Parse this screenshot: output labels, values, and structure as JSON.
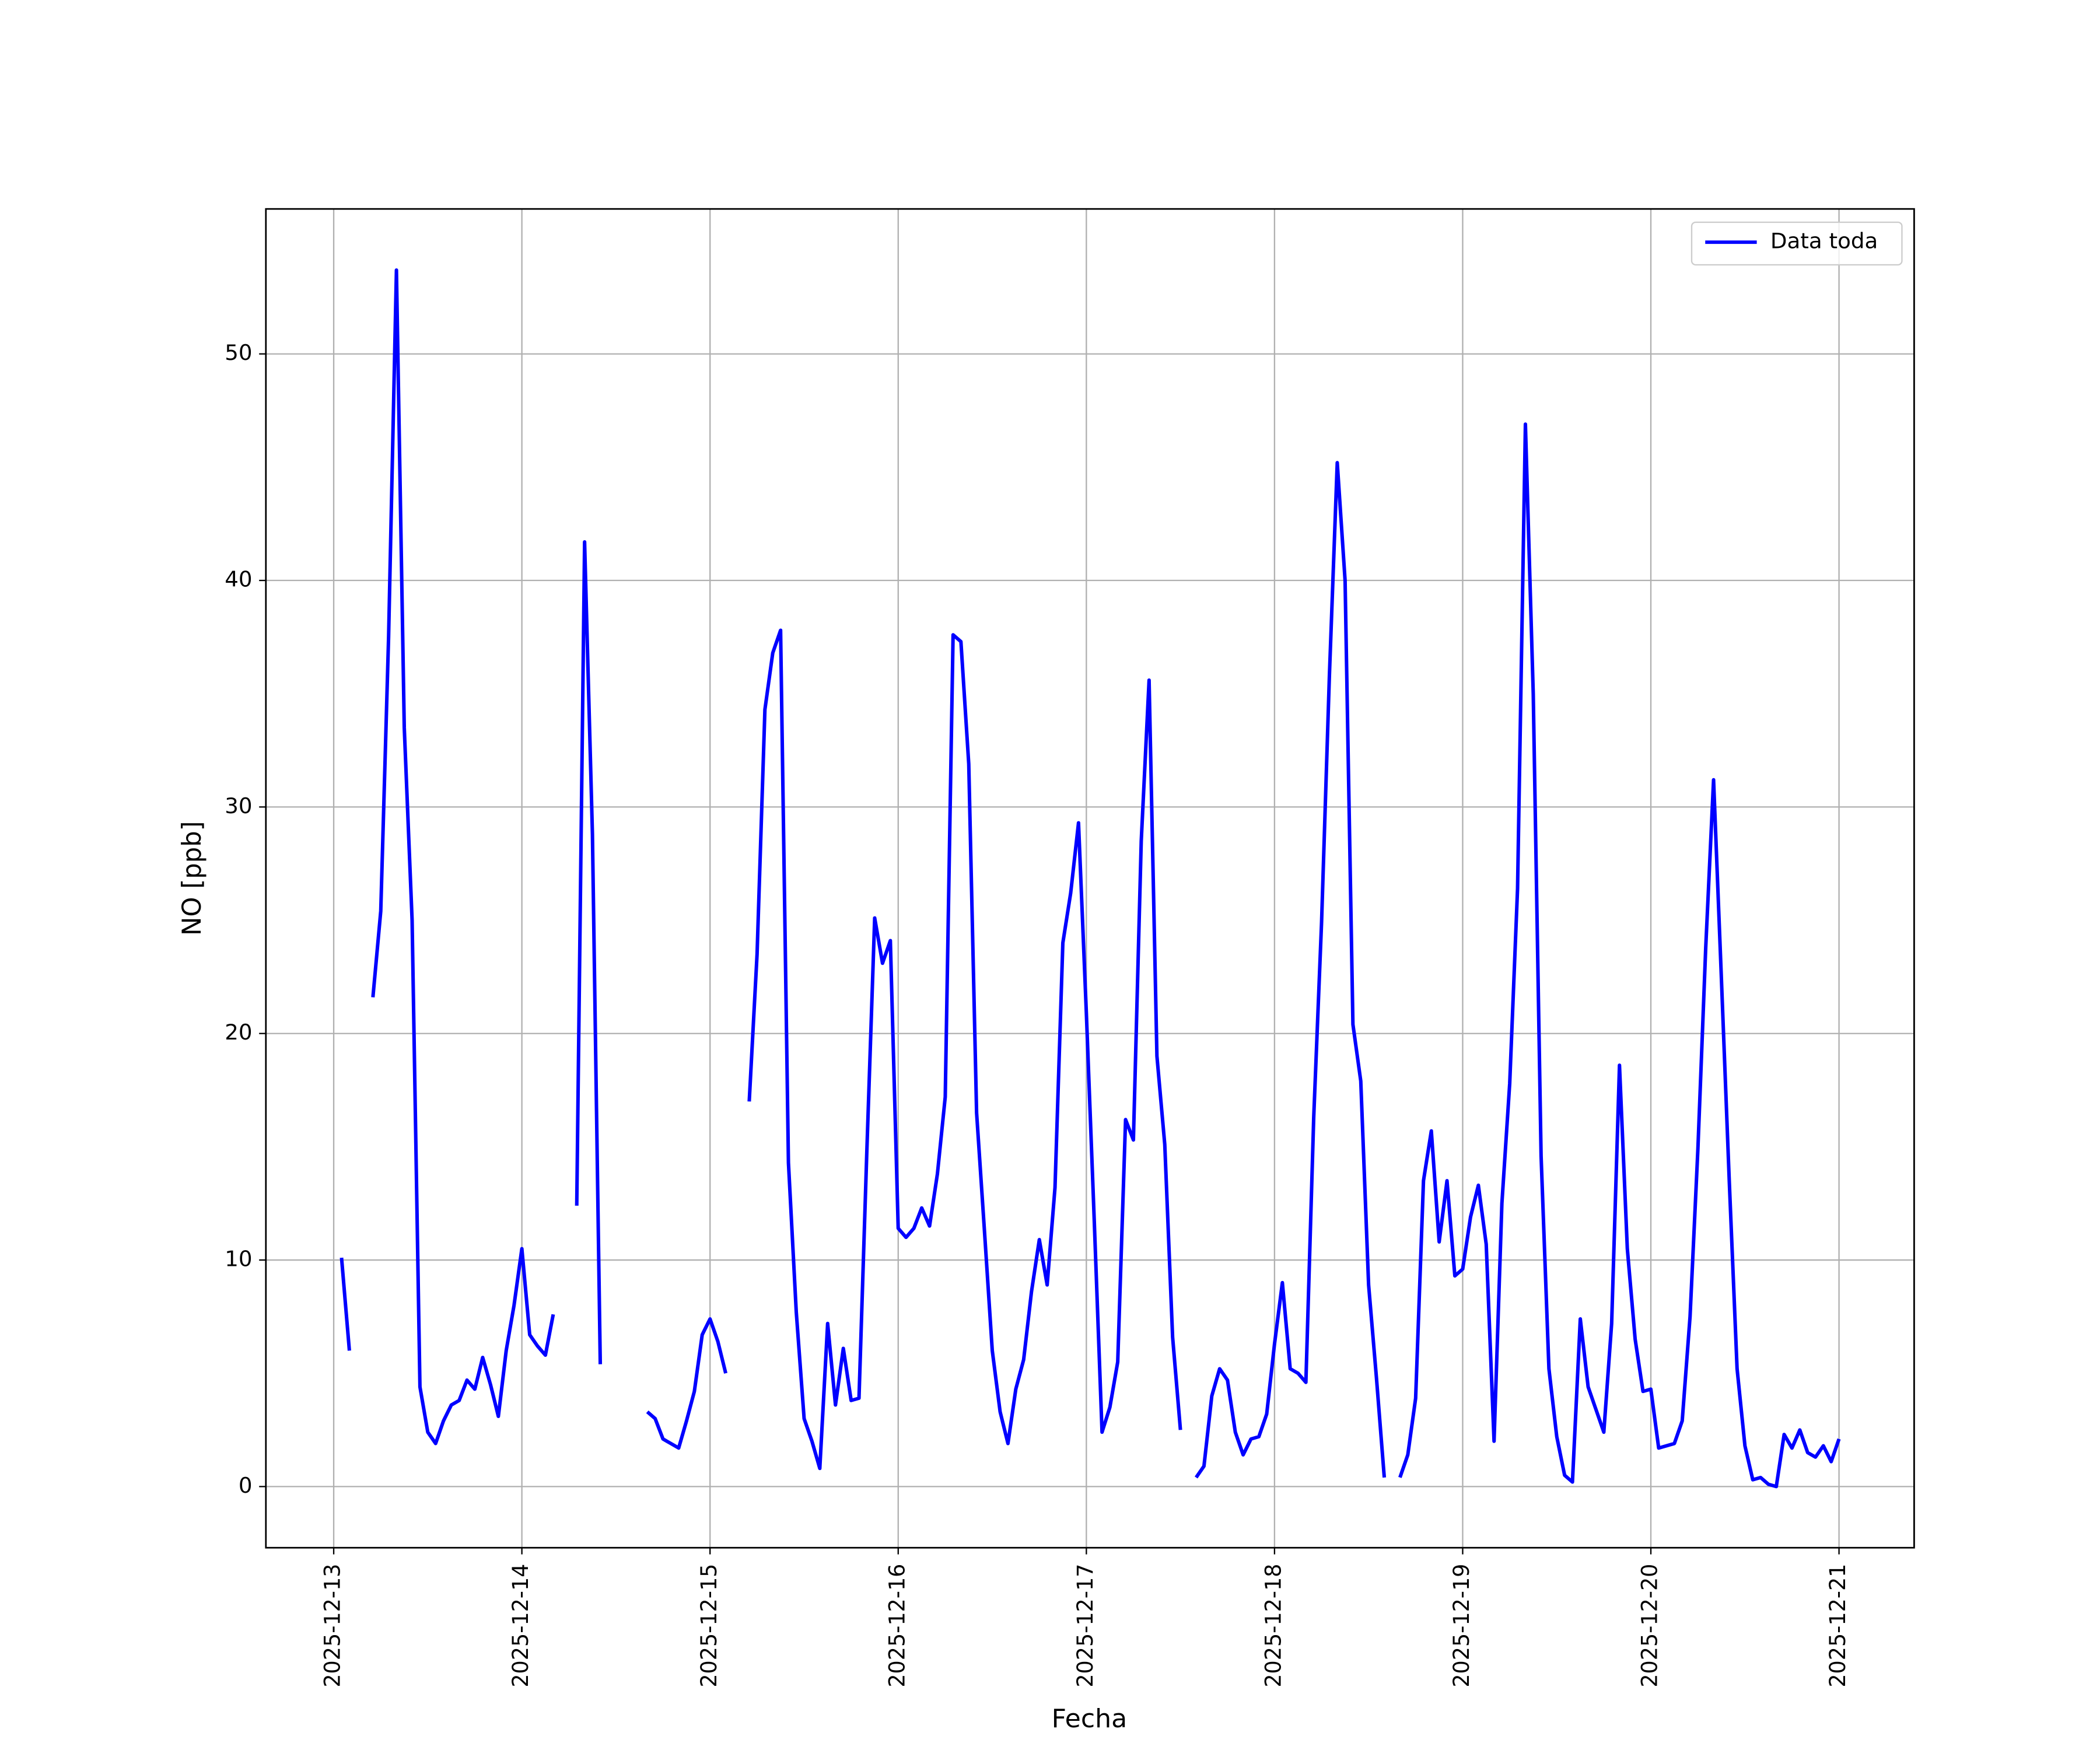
{
  "chart_data": {
    "type": "line",
    "xlabel": "Fecha",
    "ylabel": "NO [ppb]",
    "x": [
      "2025-12-13T01:00",
      "2025-12-13T02:00",
      "2025-12-13T03:00",
      "2025-12-13T04:00",
      "2025-12-13T05:00",
      "2025-12-13T06:00",
      "2025-12-13T07:00",
      "2025-12-13T08:00",
      "2025-12-13T09:00",
      "2025-12-13T10:00",
      "2025-12-13T11:00",
      "2025-12-13T12:00",
      "2025-12-13T13:00",
      "2025-12-13T14:00",
      "2025-12-13T15:00",
      "2025-12-13T16:00",
      "2025-12-13T17:00",
      "2025-12-13T18:00",
      "2025-12-13T19:00",
      "2025-12-13T20:00",
      "2025-12-13T21:00",
      "2025-12-13T22:00",
      "2025-12-13T23:00",
      "2025-12-14T00:00",
      "2025-12-14T01:00",
      "2025-12-14T02:00",
      "2025-12-14T03:00",
      "2025-12-14T04:00",
      "2025-12-14T05:00",
      "2025-12-14T06:00",
      "2025-12-14T07:00",
      "2025-12-14T08:00",
      "2025-12-14T09:00",
      "2025-12-14T10:00",
      "2025-12-14T11:00",
      "2025-12-14T12:00",
      "2025-12-14T13:00",
      "2025-12-14T14:00",
      "2025-12-14T15:00",
      "2025-12-14T16:00",
      "2025-12-14T17:00",
      "2025-12-14T18:00",
      "2025-12-14T19:00",
      "2025-12-14T20:00",
      "2025-12-14T21:00",
      "2025-12-14T22:00",
      "2025-12-14T23:00",
      "2025-12-15T00:00",
      "2025-12-15T01:00",
      "2025-12-15T02:00",
      "2025-12-15T03:00",
      "2025-12-15T04:00",
      "2025-12-15T05:00",
      "2025-12-15T06:00",
      "2025-12-15T07:00",
      "2025-12-15T08:00",
      "2025-12-15T09:00",
      "2025-12-15T10:00",
      "2025-12-15T11:00",
      "2025-12-15T12:00",
      "2025-12-15T13:00",
      "2025-12-15T14:00",
      "2025-12-15T15:00",
      "2025-12-15T16:00",
      "2025-12-15T17:00",
      "2025-12-15T18:00",
      "2025-12-15T19:00",
      "2025-12-15T20:00",
      "2025-12-15T21:00",
      "2025-12-15T22:00",
      "2025-12-15T23:00",
      "2025-12-16T00:00",
      "2025-12-16T01:00",
      "2025-12-16T02:00",
      "2025-12-16T03:00",
      "2025-12-16T04:00",
      "2025-12-16T05:00",
      "2025-12-16T06:00",
      "2025-12-16T07:00",
      "2025-12-16T08:00",
      "2025-12-16T09:00",
      "2025-12-16T10:00",
      "2025-12-16T11:00",
      "2025-12-16T12:00",
      "2025-12-16T13:00",
      "2025-12-16T14:00",
      "2025-12-16T15:00",
      "2025-12-16T16:00",
      "2025-12-16T17:00",
      "2025-12-16T18:00",
      "2025-12-16T19:00",
      "2025-12-16T20:00",
      "2025-12-16T21:00",
      "2025-12-16T22:00",
      "2025-12-16T23:00",
      "2025-12-17T00:00",
      "2025-12-17T01:00",
      "2025-12-17T02:00",
      "2025-12-17T03:00",
      "2025-12-17T04:00",
      "2025-12-17T05:00",
      "2025-12-17T06:00",
      "2025-12-17T07:00",
      "2025-12-17T08:00",
      "2025-12-17T09:00",
      "2025-12-17T10:00",
      "2025-12-17T11:00",
      "2025-12-17T12:00",
      "2025-12-17T13:00",
      "2025-12-17T14:00",
      "2025-12-17T15:00",
      "2025-12-17T16:00",
      "2025-12-17T17:00",
      "2025-12-17T18:00",
      "2025-12-17T19:00",
      "2025-12-17T20:00",
      "2025-12-17T21:00",
      "2025-12-17T22:00",
      "2025-12-17T23:00",
      "2025-12-18T00:00",
      "2025-12-18T01:00",
      "2025-12-18T02:00",
      "2025-12-18T03:00",
      "2025-12-18T04:00",
      "2025-12-18T05:00",
      "2025-12-18T06:00",
      "2025-12-18T07:00",
      "2025-12-18T08:00",
      "2025-12-18T09:00",
      "2025-12-18T10:00",
      "2025-12-18T11:00",
      "2025-12-18T12:00",
      "2025-12-18T13:00",
      "2025-12-18T14:00",
      "2025-12-18T15:00",
      "2025-12-18T16:00",
      "2025-12-18T17:00",
      "2025-12-18T18:00",
      "2025-12-18T19:00",
      "2025-12-18T20:00",
      "2025-12-18T21:00",
      "2025-12-18T22:00",
      "2025-12-18T23:00",
      "2025-12-19T00:00",
      "2025-12-19T01:00",
      "2025-12-19T02:00",
      "2025-12-19T03:00",
      "2025-12-19T04:00",
      "2025-12-19T05:00",
      "2025-12-19T06:00",
      "2025-12-19T07:00",
      "2025-12-19T08:00",
      "2025-12-19T09:00",
      "2025-12-19T10:00",
      "2025-12-19T11:00",
      "2025-12-19T12:00",
      "2025-12-19T13:00",
      "2025-12-19T14:00",
      "2025-12-19T15:00",
      "2025-12-19T16:00",
      "2025-12-19T17:00",
      "2025-12-19T18:00",
      "2025-12-19T19:00",
      "2025-12-19T20:00",
      "2025-12-19T21:00",
      "2025-12-19T22:00",
      "2025-12-19T23:00",
      "2025-12-20T00:00",
      "2025-12-20T01:00",
      "2025-12-20T02:00",
      "2025-12-20T03:00",
      "2025-12-20T04:00",
      "2025-12-20T05:00",
      "2025-12-20T06:00",
      "2025-12-20T07:00",
      "2025-12-20T08:00",
      "2025-12-20T09:00",
      "2025-12-20T10:00",
      "2025-12-20T11:00",
      "2025-12-20T12:00",
      "2025-12-20T13:00",
      "2025-12-20T14:00",
      "2025-12-20T15:00",
      "2025-12-20T16:00",
      "2025-12-20T17:00",
      "2025-12-20T18:00",
      "2025-12-20T19:00",
      "2025-12-20T20:00",
      "2025-12-20T21:00",
      "2025-12-20T22:00",
      "2025-12-20T23:00",
      "2025-12-21T00:00"
    ],
    "series": [
      {
        "name": "Data toda",
        "color": "#0000ff",
        "values": [
          10.1,
          6.0,
          null,
          null,
          21.6,
          25.4,
          37.5,
          53.7,
          33.5,
          25.0,
          4.4,
          2.4,
          1.9,
          2.9,
          3.6,
          3.8,
          4.7,
          4.3,
          5.7,
          4.5,
          3.1,
          6.0,
          8.0,
          10.5,
          6.7,
          6.2,
          5.8,
          7.6,
          null,
          null,
          12.4,
          41.7,
          28.8,
          5.4,
          null,
          null,
          null,
          null,
          null,
          3.3,
          3.0,
          2.1,
          1.9,
          1.7,
          2.9,
          4.2,
          6.7,
          7.4,
          6.4,
          5.0,
          null,
          null,
          17.0,
          23.5,
          34.3,
          36.8,
          37.8,
          14.3,
          7.7,
          3.0,
          2.0,
          0.8,
          7.2,
          3.6,
          6.1,
          3.8,
          3.9,
          14.8,
          25.1,
          23.1,
          24.1,
          11.4,
          11.0,
          11.4,
          12.3,
          11.5,
          13.8,
          17.2,
          37.6,
          37.3,
          31.9,
          16.5,
          11.3,
          6.0,
          3.3,
          1.9,
          4.3,
          5.6,
          8.6,
          10.9,
          8.9,
          13.2,
          24.0,
          26.2,
          29.3,
          20.9,
          11.8,
          2.4,
          3.5,
          5.5,
          16.2,
          15.3,
          28.5,
          35.6,
          19.0,
          15.1,
          6.6,
          2.5,
          null,
          0.4,
          0.9,
          4.0,
          5.2,
          4.7,
          2.4,
          1.4,
          2.1,
          2.2,
          3.2,
          6.3,
          9.0,
          5.2,
          5.0,
          4.6,
          16.3,
          24.9,
          35.8,
          45.2,
          40.0,
          20.4,
          17.9,
          8.9,
          4.8,
          0.4,
          null,
          0.4,
          1.4,
          3.9,
          13.5,
          15.7,
          10.8,
          13.5,
          9.3,
          9.6,
          11.9,
          13.3,
          10.7,
          2.0,
          12.5,
          17.8,
          26.4,
          46.9,
          35.0,
          14.6,
          5.2,
          2.2,
          0.5,
          0.2,
          7.4,
          4.4,
          3.4,
          2.4,
          7.2,
          18.6,
          10.5,
          6.5,
          4.2,
          4.3,
          1.7,
          1.8,
          1.9,
          2.9,
          7.5,
          14.9,
          23.8,
          31.2,
          22.4,
          13.5,
          5.2,
          1.8,
          0.3,
          0.4,
          0.1,
          0,
          2.3,
          1.7,
          2.5,
          1.5,
          1.3,
          1.8,
          1.1,
          2.1
        ]
      }
    ],
    "xlim": [
      "2025-12-12T15:21",
      "2025-12-21T09:35"
    ],
    "xticks": [
      "2025-12-13",
      "2025-12-14",
      "2025-12-15",
      "2025-12-16",
      "2025-12-17",
      "2025-12-18",
      "2025-12-19",
      "2025-12-20",
      "2025-12-21"
    ],
    "ylim": [
      -2.7,
      56.4
    ],
    "yticks": [
      0,
      10,
      20,
      30,
      40,
      50
    ],
    "grid": true,
    "legend": "upper right"
  }
}
